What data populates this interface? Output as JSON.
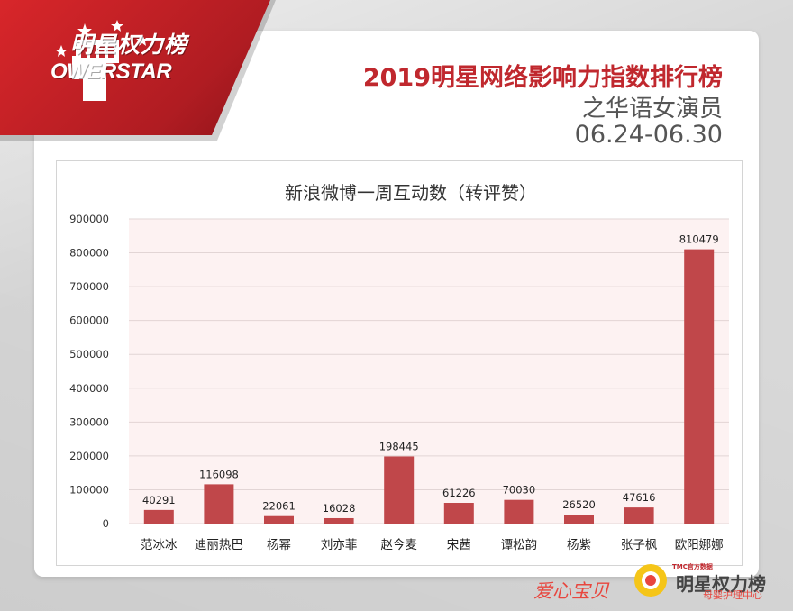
{
  "brand": {
    "logo_cn": "明星权力榜",
    "logo_en": "OWERSTAR"
  },
  "header": {
    "title": "2019明星网络影响力指数排行榜",
    "subtitle": "之华语女演员",
    "date_range": "06.24-06.30"
  },
  "watermark": {
    "left_text": "爱心宝贝",
    "right_text": "明星权力榜",
    "right_sub": "母婴护理中心",
    "tiny": "TMC官方数据"
  },
  "colors": {
    "accent_red": "#c0282e",
    "bar": "#c0474a",
    "plot_bg": "#fdf2f2",
    "grid": "#e2d5d5"
  },
  "chart_data": {
    "type": "bar",
    "title": "新浪微博一周互动数（转评赞）",
    "categories": [
      "范冰冰",
      "迪丽热巴",
      "杨幂",
      "刘亦菲",
      "赵今麦",
      "宋茜",
      "谭松韵",
      "杨紫",
      "张子枫",
      "欧阳娜娜"
    ],
    "values": [
      40291,
      116098,
      22061,
      16028,
      198445,
      61226,
      70030,
      26520,
      47616,
      810479
    ],
    "data_labels": [
      "40291",
      "116098",
      "22061",
      "16028",
      "198445",
      "61226",
      "70030",
      "26520",
      "47616",
      "810479"
    ],
    "ylim": [
      0,
      900000
    ],
    "yticks": [
      "0",
      "100000",
      "200000",
      "300000",
      "400000",
      "500000",
      "600000",
      "700000",
      "800000",
      "900000"
    ],
    "xlabel": "",
    "ylabel": "",
    "grid": true
  }
}
